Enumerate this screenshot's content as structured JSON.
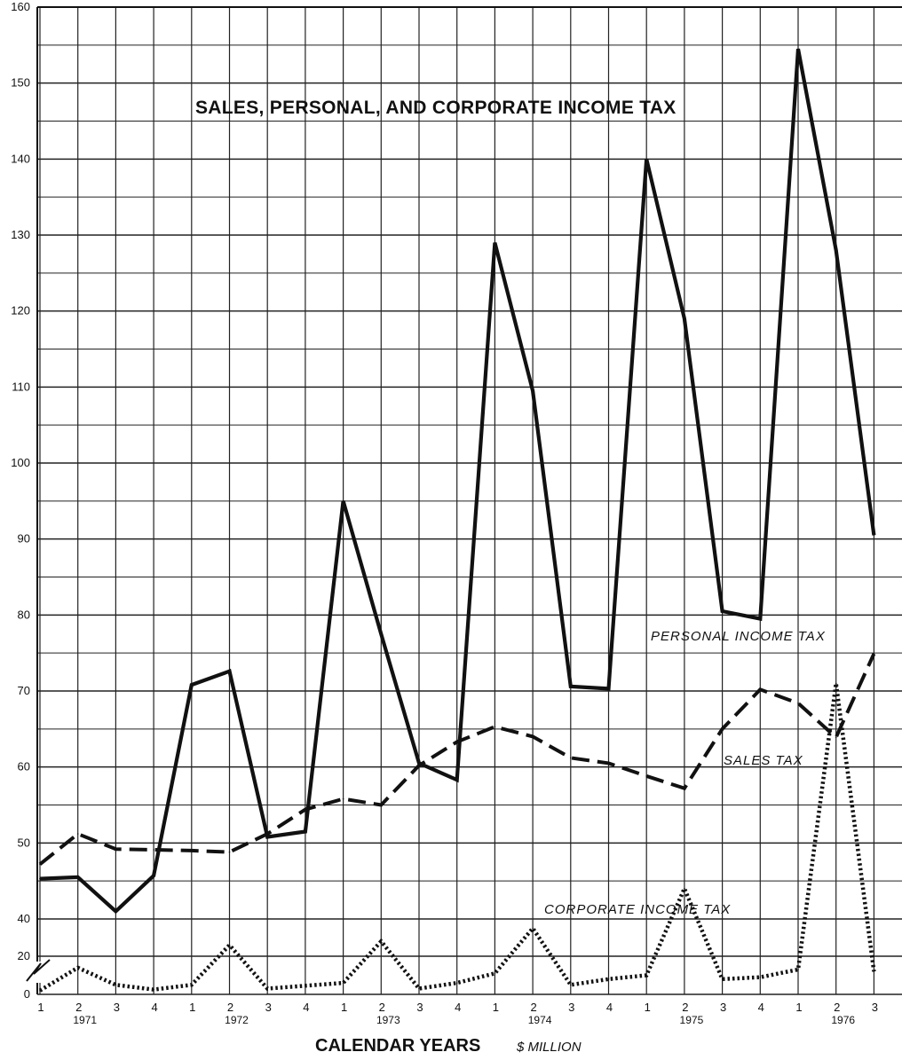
{
  "chart_data": {
    "type": "line",
    "title": "SALES, PERSONAL, AND CORPORATE INCOME TAX",
    "xlabel": "CALENDAR YEARS",
    "unit_label": "$ MILLION",
    "x_quarter_labels": [
      "1",
      "2",
      "3",
      "4",
      "1",
      "2",
      "3",
      "4",
      "1",
      "2",
      "3",
      "4",
      "1",
      "2",
      "3",
      "4",
      "1",
      "2",
      "3",
      "4",
      "1",
      "2",
      "3"
    ],
    "year_labels": [
      "1971",
      "1972",
      "1973",
      "1974",
      "1975",
      "1976"
    ],
    "y_tick_labels": [
      "0",
      "20",
      "40",
      "50",
      "60",
      "70",
      "80",
      "90",
      "100",
      "110",
      "120",
      "130",
      "140",
      "150",
      "160"
    ],
    "ylim": [
      0,
      160
    ],
    "y_axis_break": "axis is broken between 0-20 and 40; 40 to 160 drawn to full scale",
    "grid": true,
    "series": [
      {
        "name": "PERSONAL INCOME TAX",
        "style": "solid",
        "values": [
          45.3,
          45.5,
          41.0,
          45.7,
          70.8,
          72.6,
          50.8,
          51.5,
          95.0,
          77.5,
          60.5,
          58.3,
          129.0,
          109.5,
          70.6,
          70.3,
          140.0,
          119.0,
          80.5,
          79.5,
          154.5,
          128.0,
          90.5
        ]
      },
      {
        "name": "SALES TAX",
        "style": "dashed",
        "values": [
          47.2,
          51.2,
          49.2,
          49.1,
          49.0,
          48.8,
          51.2,
          54.4,
          55.8,
          55.0,
          60.2,
          63.3,
          65.3,
          64.0,
          61.2,
          60.5,
          58.8,
          57.2,
          65.0,
          70.2,
          68.4,
          63.9,
          74.9
        ]
      },
      {
        "name": "CORPORATE INCOME TAX",
        "style": "dotted",
        "values": [
          2.0,
          14.0,
          5.0,
          2.5,
          5.0,
          26.0,
          3.0,
          4.5,
          6.0,
          28.0,
          3.0,
          6.0,
          11.0,
          35.0,
          5.0,
          8.0,
          10.0,
          44.0,
          8.0,
          9.0,
          13.0,
          71.0,
          12.0
        ]
      }
    ]
  }
}
